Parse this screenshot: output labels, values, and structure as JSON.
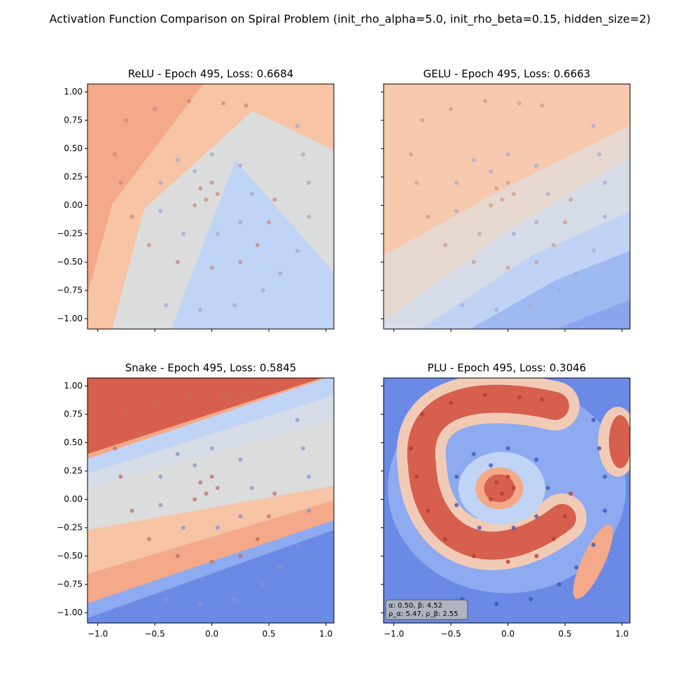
{
  "title": "Activation Function Comparison on Spiral Problem (init_rho_alpha=5.0, init_rho_beta=0.15, hidden_size=2)",
  "chart_data": [
    {
      "type": "scatter",
      "title": "ReLU - Epoch 495, Loss: 0.6684",
      "xlim": [
        -1.09,
        1.07
      ],
      "ylim": [
        -1.09,
        1.07
      ],
      "xticks": [
        -1,
        -0.5,
        0,
        0.5,
        1
      ],
      "yticks": [
        {
          "value": -1,
          "label": "−1.00"
        },
        {
          "value": -0.75,
          "label": "−0.75"
        },
        {
          "value": -0.5,
          "label": "−0.50"
        },
        {
          "value": -0.25,
          "label": "−0.25"
        },
        {
          "value": 0,
          "label": "0.00"
        },
        {
          "value": 0.25,
          "label": "0.25"
        },
        {
          "value": 0.5,
          "label": "0.50"
        },
        {
          "value": 0.75,
          "label": "0.75"
        },
        {
          "value": 1,
          "label": "1.00"
        }
      ],
      "series": [
        {
          "color": "#c98a7e",
          "x": [
            -0.1,
            -0.05,
            0.0,
            -0.15,
            0.05,
            -0.75,
            -0.5,
            -0.2,
            0.1,
            0.3,
            -0.85,
            -0.8,
            -0.7,
            -0.55,
            -0.3,
            0.0,
            0.25,
            0.4,
            0.5,
            0.55
          ],
          "values": [
            0.15,
            0.05,
            0.2,
            0.0,
            0.1,
            0.75,
            0.85,
            0.92,
            0.9,
            0.88,
            0.45,
            0.2,
            -0.1,
            -0.35,
            -0.5,
            -0.55,
            -0.5,
            -0.35,
            -0.15,
            0.05
          ]
        },
        {
          "color": "#a2a8cc",
          "x": [
            -0.3,
            0.0,
            0.25,
            0.35,
            0.25,
            0.05,
            -0.25,
            -0.45,
            -0.45,
            -0.15,
            -0.4,
            -0.1,
            0.2,
            0.45,
            0.6,
            0.75,
            0.85,
            0.85,
            0.8,
            0.75
          ],
          "values": [
            0.4,
            0.45,
            0.35,
            0.1,
            -0.15,
            -0.25,
            -0.25,
            -0.05,
            0.2,
            0.3,
            -0.88,
            -0.92,
            -0.88,
            -0.75,
            -0.6,
            -0.4,
            -0.1,
            0.2,
            0.45,
            0.7
          ]
        }
      ]
    },
    {
      "type": "scatter",
      "title": "GELU - Epoch 495, Loss: 0.6663",
      "xlim": [
        -1.09,
        1.07
      ],
      "ylim": [
        -1.09,
        1.07
      ],
      "xticks": [
        -1,
        -0.5,
        0,
        0.5,
        1
      ],
      "yticks": [
        -1,
        -0.75,
        -0.5,
        -0.25,
        0,
        0.25,
        0.5,
        0.75,
        1
      ],
      "series": [
        {
          "color": "#d09a8c",
          "x": [
            -0.1,
            -0.05,
            0.0,
            -0.15,
            0.05,
            -0.75,
            -0.5,
            -0.2,
            0.1,
            0.3,
            -0.85,
            -0.8,
            -0.7,
            -0.55,
            -0.3,
            0.0,
            0.25,
            0.4,
            0.5,
            0.55
          ],
          "values": [
            0.15,
            0.05,
            0.2,
            0.0,
            0.1,
            0.75,
            0.85,
            0.92,
            0.9,
            0.88,
            0.45,
            0.2,
            -0.1,
            -0.35,
            -0.5,
            -0.55,
            -0.5,
            -0.35,
            -0.15,
            0.05
          ]
        },
        {
          "color": "#a2acd2",
          "x": [
            -0.3,
            0.0,
            0.25,
            0.35,
            0.25,
            0.05,
            -0.25,
            -0.45,
            -0.45,
            -0.15,
            -0.4,
            -0.1,
            0.2,
            0.45,
            0.6,
            0.75,
            0.85,
            0.85,
            0.8,
            0.75
          ],
          "values": [
            0.4,
            0.45,
            0.35,
            0.1,
            -0.15,
            -0.25,
            -0.25,
            -0.05,
            0.2,
            0.3,
            -0.88,
            -0.92,
            -0.88,
            -0.75,
            -0.6,
            -0.4,
            -0.1,
            0.2,
            0.45,
            0.7
          ]
        }
      ]
    },
    {
      "type": "scatter",
      "title": "Snake - Epoch 495, Loss: 0.5845",
      "xlim": [
        -1.09,
        1.07
      ],
      "ylim": [
        -1.09,
        1.07
      ],
      "xticks": [
        {
          "value": -1,
          "label": "−1.0"
        },
        {
          "value": -0.5,
          "label": "−0.5"
        },
        {
          "value": 0,
          "label": "0.0"
        },
        {
          "value": 0.5,
          "label": "0.5"
        },
        {
          "value": 1,
          "label": "1.0"
        }
      ],
      "yticks": [
        {
          "value": -1,
          "label": "−1.00"
        },
        {
          "value": -0.75,
          "label": "−0.75"
        },
        {
          "value": -0.5,
          "label": "−0.50"
        },
        {
          "value": -0.25,
          "label": "−0.25"
        },
        {
          "value": 0,
          "label": "0.00"
        },
        {
          "value": 0.25,
          "label": "0.25"
        },
        {
          "value": 0.5,
          "label": "0.50"
        },
        {
          "value": 0.75,
          "label": "0.75"
        },
        {
          "value": 1,
          "label": "1.00"
        }
      ],
      "series": [
        {
          "color": "#c0705f",
          "x": [
            -0.1,
            -0.05,
            0.0,
            -0.15,
            0.05,
            -0.75,
            -0.5,
            -0.2,
            0.1,
            0.3,
            -0.85,
            -0.8,
            -0.7,
            -0.55,
            -0.3,
            0.0,
            0.25,
            0.4,
            0.5,
            0.55
          ],
          "values": [
            0.15,
            0.05,
            0.2,
            0.0,
            0.1,
            0.75,
            0.85,
            0.92,
            0.9,
            0.88,
            0.45,
            0.2,
            -0.1,
            -0.35,
            -0.5,
            -0.55,
            -0.5,
            -0.35,
            -0.15,
            0.05
          ]
        },
        {
          "color": "#8a96cc",
          "x": [
            -0.3,
            0.0,
            0.25,
            0.35,
            0.25,
            0.05,
            -0.25,
            -0.45,
            -0.45,
            -0.15,
            -0.4,
            -0.1,
            0.2,
            0.45,
            0.6,
            0.75,
            0.85,
            0.85,
            0.8,
            0.75
          ],
          "values": [
            0.4,
            0.45,
            0.35,
            0.1,
            -0.15,
            -0.25,
            -0.25,
            -0.05,
            0.2,
            0.3,
            -0.88,
            -0.92,
            -0.88,
            -0.75,
            -0.6,
            -0.4,
            -0.1,
            0.2,
            0.45,
            0.7
          ]
        }
      ]
    },
    {
      "type": "scatter",
      "title": "PLU - Epoch 495, Loss: 0.3046",
      "xlim": [
        -1.09,
        1.07
      ],
      "ylim": [
        -1.09,
        1.07
      ],
      "xticks": [
        {
          "value": -1,
          "label": "−1.0"
        },
        {
          "value": -0.5,
          "label": "−0.5"
        },
        {
          "value": 0,
          "label": "0.0"
        },
        {
          "value": 0.5,
          "label": "0.5"
        },
        {
          "value": 1,
          "label": "1.0"
        }
      ],
      "yticks": [
        -1,
        -0.75,
        -0.5,
        -0.25,
        0,
        0.25,
        0.5,
        0.75,
        1
      ],
      "annotations": [
        "α: 0.50, β: 4.52",
        "ρ_α: 5.47, ρ_β: 2.55"
      ],
      "series": [
        {
          "color": "#b8362a",
          "x": [
            -0.1,
            -0.05,
            0.0,
            -0.15,
            0.05,
            -0.75,
            -0.5,
            -0.2,
            0.1,
            0.3,
            -0.85,
            -0.8,
            -0.7,
            -0.55,
            -0.3,
            0.0,
            0.25,
            0.4,
            0.5,
            0.55
          ],
          "values": [
            0.15,
            0.05,
            0.2,
            0.0,
            0.1,
            0.75,
            0.85,
            0.92,
            0.9,
            0.88,
            0.45,
            0.2,
            -0.1,
            -0.35,
            -0.5,
            -0.55,
            -0.5,
            -0.35,
            -0.15,
            0.05
          ]
        },
        {
          "color": "#3650b8",
          "x": [
            -0.3,
            0.0,
            0.25,
            0.35,
            0.25,
            0.05,
            -0.25,
            -0.45,
            -0.45,
            -0.15,
            -0.4,
            -0.1,
            0.2,
            0.45,
            0.6,
            0.75,
            0.85,
            0.85,
            0.8,
            0.75
          ],
          "values": [
            0.4,
            0.45,
            0.35,
            0.1,
            -0.15,
            -0.25,
            -0.25,
            -0.05,
            0.2,
            0.3,
            -0.88,
            -0.92,
            -0.88,
            -0.75,
            -0.6,
            -0.4,
            -0.1,
            0.2,
            0.45,
            0.7
          ]
        }
      ]
    }
  ]
}
